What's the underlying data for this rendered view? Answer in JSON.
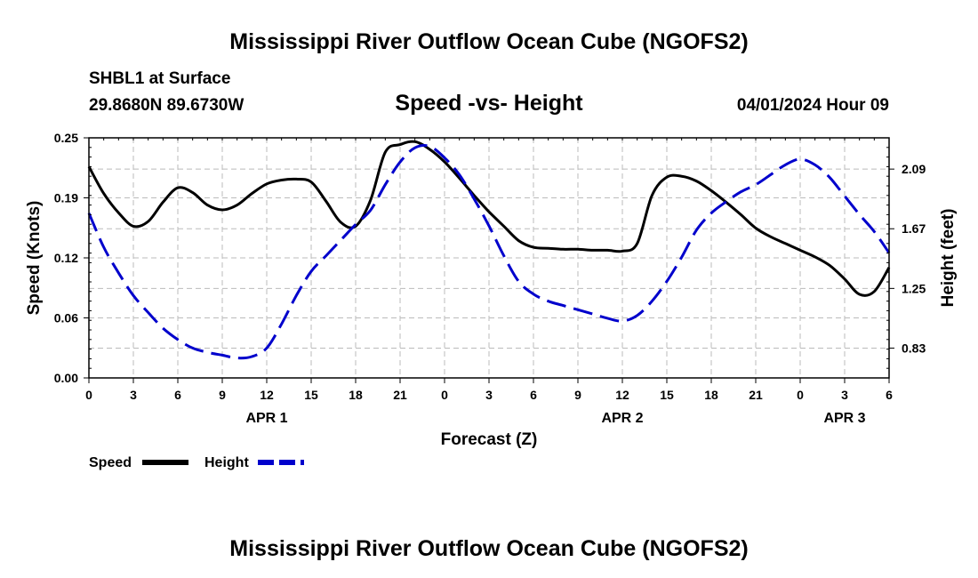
{
  "header": {
    "title": "Mississippi River Outflow Ocean Cube (NGOFS2)",
    "station": "SHBL1 at Surface",
    "coords": "29.8680N  89.6730W",
    "chart_title": "Speed -vs- Height",
    "datetime": "04/01/2024 Hour 09"
  },
  "footer": {
    "title": "Mississippi River Outflow Ocean Cube (NGOFS2)"
  },
  "colors": {
    "speed": "#000000",
    "height": "#0000cc",
    "grid": "#bbbbbb"
  },
  "chart_data": {
    "type": "line",
    "title": "Speed -vs- Height",
    "xlabel": "Forecast (Z)",
    "ylabel": "Speed (Knots)",
    "y2label": "Height (feet)",
    "x_unit": "forecast hours from 00Z Apr 1",
    "xlim": [
      0,
      54
    ],
    "ylim": [
      0,
      0.25
    ],
    "y2lim": [
      0.62,
      2.31
    ],
    "x_ticks": [
      0,
      3,
      6,
      9,
      12,
      15,
      18,
      21,
      24,
      27,
      30,
      33,
      36,
      39,
      42,
      45,
      48,
      51,
      54
    ],
    "x_tick_labels": [
      "0",
      "3",
      "6",
      "9",
      "12",
      "15",
      "18",
      "21",
      "0",
      "3",
      "6",
      "9",
      "12",
      "15",
      "18",
      "21",
      "0",
      "3",
      "6"
    ],
    "y_ticks": [
      "0.00",
      "0.06",
      "0.12",
      "0.19",
      "0.25"
    ],
    "y_tick_values": [
      0,
      0.0625,
      0.125,
      0.1875,
      0.25
    ],
    "y2_ticks": [
      "0.83",
      "1.25",
      "1.67",
      "2.09"
    ],
    "y2_tick_values": [
      0.83,
      1.25,
      1.67,
      2.09
    ],
    "date_labels": [
      {
        "label": "APR 1",
        "x": 12
      },
      {
        "label": "APR 2",
        "x": 36
      },
      {
        "label": "APR 3",
        "x": 51
      }
    ],
    "legend": [
      "Speed",
      "Height"
    ],
    "series": [
      {
        "name": "Speed",
        "axis": "left",
        "style": "solid",
        "x": [
          0,
          1,
          2,
          3,
          4,
          5,
          6,
          7,
          8,
          9,
          10,
          11,
          12,
          13,
          14,
          15,
          16,
          17,
          18,
          19,
          20,
          21,
          22,
          23,
          24,
          25,
          26,
          27,
          28,
          29,
          30,
          31,
          32,
          33,
          34,
          35,
          36,
          37,
          38,
          39,
          40,
          41,
          42,
          43,
          44,
          45,
          46,
          47,
          48,
          49,
          50,
          51,
          52,
          53,
          54
        ],
        "values": [
          0.22,
          0.192,
          0.172,
          0.158,
          0.163,
          0.183,
          0.198,
          0.193,
          0.18,
          0.175,
          0.18,
          0.192,
          0.202,
          0.206,
          0.207,
          0.204,
          0.184,
          0.162,
          0.158,
          0.185,
          0.235,
          0.243,
          0.246,
          0.238,
          0.225,
          0.208,
          0.19,
          0.173,
          0.158,
          0.143,
          0.136,
          0.135,
          0.134,
          0.134,
          0.133,
          0.133,
          0.132,
          0.14,
          0.19,
          0.209,
          0.21,
          0.205,
          0.195,
          0.183,
          0.17,
          0.156,
          0.147,
          0.14,
          0.133,
          0.126,
          0.117,
          0.103,
          0.087,
          0.09,
          0.115
        ]
      },
      {
        "name": "Height",
        "axis": "right",
        "style": "dashed",
        "x": [
          0,
          1,
          2,
          3,
          4,
          5,
          6,
          7,
          8,
          9,
          10,
          11,
          12,
          13,
          14,
          15,
          16,
          17,
          18,
          19,
          20,
          21,
          22,
          23,
          24,
          25,
          26,
          27,
          28,
          29,
          30,
          31,
          32,
          33,
          34,
          35,
          36,
          37,
          38,
          39,
          40,
          41,
          42,
          43,
          44,
          45,
          46,
          47,
          48,
          49,
          50,
          51,
          52,
          53,
          54
        ],
        "values": [
          1.78,
          1.54,
          1.36,
          1.2,
          1.08,
          0.97,
          0.89,
          0.83,
          0.8,
          0.78,
          0.76,
          0.77,
          0.83,
          1.0,
          1.2,
          1.37,
          1.48,
          1.59,
          1.7,
          1.8,
          1.98,
          2.14,
          2.24,
          2.25,
          2.17,
          2.05,
          1.88,
          1.69,
          1.48,
          1.3,
          1.21,
          1.16,
          1.13,
          1.1,
          1.07,
          1.04,
          1.02,
          1.06,
          1.16,
          1.3,
          1.47,
          1.66,
          1.78,
          1.86,
          1.93,
          1.98,
          2.05,
          2.12,
          2.16,
          2.12,
          2.03,
          1.9,
          1.77,
          1.65,
          1.5
        ]
      }
    ]
  }
}
